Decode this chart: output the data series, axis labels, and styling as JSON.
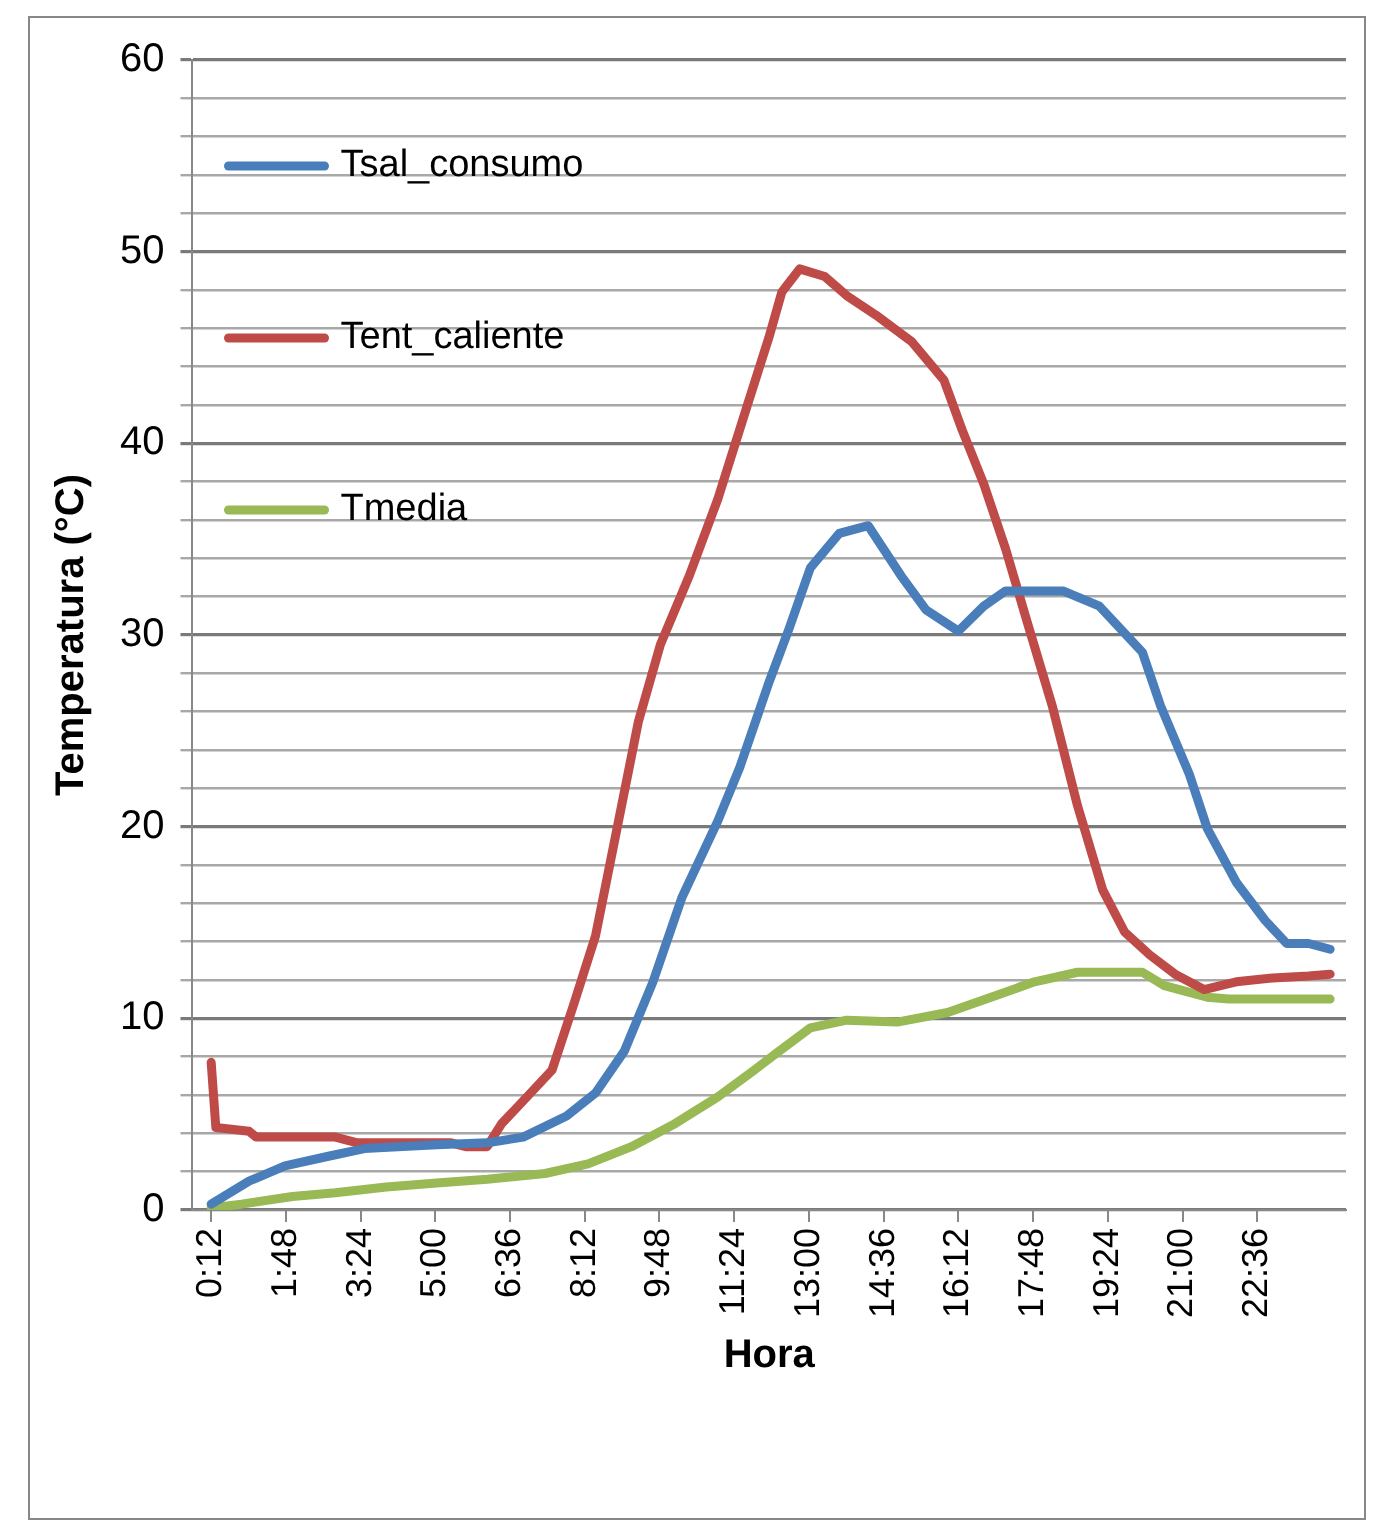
{
  "chart_data": {
    "type": "line",
    "xlabel": "Hora",
    "ylabel": "Temperatura (°C)",
    "xlim": [
      -0.2,
      24.5
    ],
    "ylim": [
      0,
      60
    ],
    "xticks": [
      {
        "value": 0.2,
        "label": "0:12"
      },
      {
        "value": 1.8,
        "label": "1:48"
      },
      {
        "value": 3.4,
        "label": "3:24"
      },
      {
        "value": 5.0,
        "label": "5:00"
      },
      {
        "value": 6.6,
        "label": "6:36"
      },
      {
        "value": 8.2,
        "label": "8:12"
      },
      {
        "value": 9.8,
        "label": "9:48"
      },
      {
        "value": 11.4,
        "label": "11:24"
      },
      {
        "value": 13.0,
        "label": "13:00"
      },
      {
        "value": 14.6,
        "label": "14:36"
      },
      {
        "value": 16.2,
        "label": "16:12"
      },
      {
        "value": 17.8,
        "label": "17:48"
      },
      {
        "value": 19.4,
        "label": "19:24"
      },
      {
        "value": 21.0,
        "label": "21:00"
      },
      {
        "value": 22.6,
        "label": "22:36"
      }
    ],
    "yticks": [
      0,
      {
        "value": 2,
        "label": null
      },
      {
        "value": 4,
        "label": null
      },
      {
        "value": 6,
        "label": null
      },
      {
        "value": 8,
        "label": null
      },
      10,
      {
        "value": 12,
        "label": null
      },
      {
        "value": 14,
        "label": null
      },
      {
        "value": 16,
        "label": null
      },
      {
        "value": 18,
        "label": null
      },
      20,
      {
        "value": 22,
        "label": null
      },
      {
        "value": 24,
        "label": null
      },
      {
        "value": 26,
        "label": null
      },
      {
        "value": 28,
        "label": null
      },
      30,
      {
        "value": 32,
        "label": null
      },
      {
        "value": 34,
        "label": null
      },
      {
        "value": 36,
        "label": null
      },
      {
        "value": 38,
        "label": null
      },
      40,
      {
        "value": 42,
        "label": null
      },
      {
        "value": 44,
        "label": null
      },
      {
        "value": 46,
        "label": null
      },
      {
        "value": 48,
        "label": null
      },
      50,
      {
        "value": 52,
        "label": null
      },
      {
        "value": 54,
        "label": null
      },
      {
        "value": 56,
        "label": null
      },
      {
        "value": 58,
        "label": null
      },
      60
    ],
    "grid": "y",
    "legend": "top left",
    "marker": "none",
    "line_style": "solid",
    "series": [
      {
        "name": "Tsal_consumo",
        "color": "#4a7ebb",
        "x": [
          0.2,
          1.01,
          1.78,
          2.71,
          3.48,
          5.03,
          6.11,
          6.88,
          7.81,
          8.43,
          9.05,
          9.66,
          10.28,
          11.05,
          11.52,
          12.14,
          12.57,
          13.03,
          13.65,
          14.27,
          14.97,
          15.51,
          16.2,
          16.74,
          17.21,
          18.44,
          19.22,
          20.14,
          20.53,
          21.15,
          21.53,
          22.15,
          22.77,
          23.23,
          23.7,
          24.16
        ],
        "values": [
          0.3,
          1.5,
          2.3,
          2.8,
          3.2,
          3.4,
          3.5,
          3.8,
          4.9,
          6.1,
          8.3,
          11.9,
          16.3,
          20.3,
          23.1,
          27.5,
          30.3,
          33.5,
          35.3,
          35.7,
          33.1,
          31.3,
          30.2,
          31.5,
          32.3,
          32.3,
          31.5,
          29.1,
          26.3,
          22.7,
          19.9,
          17.1,
          15.1,
          13.9,
          13.9,
          13.6
        ]
      },
      {
        "name": "Tent_caliente",
        "color": "#be4b48",
        "x": [
          0.2,
          0.3,
          1.01,
          1.16,
          2.86,
          3.33,
          5.34,
          5.65,
          6.11,
          6.42,
          7.04,
          7.5,
          7.96,
          8.43,
          8.89,
          9.35,
          9.82,
          10.44,
          11.05,
          11.67,
          12.14,
          12.42,
          12.8,
          13.34,
          13.81,
          14.43,
          15.2,
          15.89,
          16.28,
          16.74,
          17.21,
          17.67,
          18.21,
          18.75,
          19.29,
          19.76,
          20.3,
          20.84,
          21.46,
          22.15,
          22.93,
          23.7,
          24.16
        ],
        "values": [
          7.7,
          4.3,
          4.1,
          3.8,
          3.8,
          3.5,
          3.5,
          3.3,
          3.3,
          4.5,
          6.1,
          7.3,
          10.7,
          14.3,
          19.9,
          25.5,
          29.5,
          33.1,
          37.1,
          41.9,
          45.5,
          47.9,
          49.1,
          48.7,
          47.7,
          46.7,
          45.3,
          43.3,
          40.7,
          37.9,
          34.5,
          30.7,
          26.3,
          21.1,
          16.7,
          14.5,
          13.3,
          12.3,
          11.5,
          11.9,
          12.1,
          12.2,
          12.3
        ]
      },
      {
        "name": "Tmedia",
        "color": "#98b954",
        "x": [
          0.2,
          0.85,
          1.94,
          2.86,
          3.95,
          5.03,
          6.11,
          7.35,
          8.27,
          9.2,
          10.13,
          11.05,
          11.83,
          12.37,
          13.03,
          13.81,
          14.89,
          15.97,
          16.9,
          17.83,
          18.75,
          20.14,
          20.61,
          21.53,
          21.99,
          24.16
        ],
        "values": [
          0.1,
          0.3,
          0.7,
          0.9,
          1.2,
          1.4,
          1.6,
          1.9,
          2.4,
          3.3,
          4.5,
          5.9,
          7.3,
          8.3,
          9.5,
          9.9,
          9.8,
          10.3,
          11.1,
          11.9,
          12.4,
          12.4,
          11.7,
          11.1,
          11.0,
          11.0
        ]
      }
    ]
  }
}
